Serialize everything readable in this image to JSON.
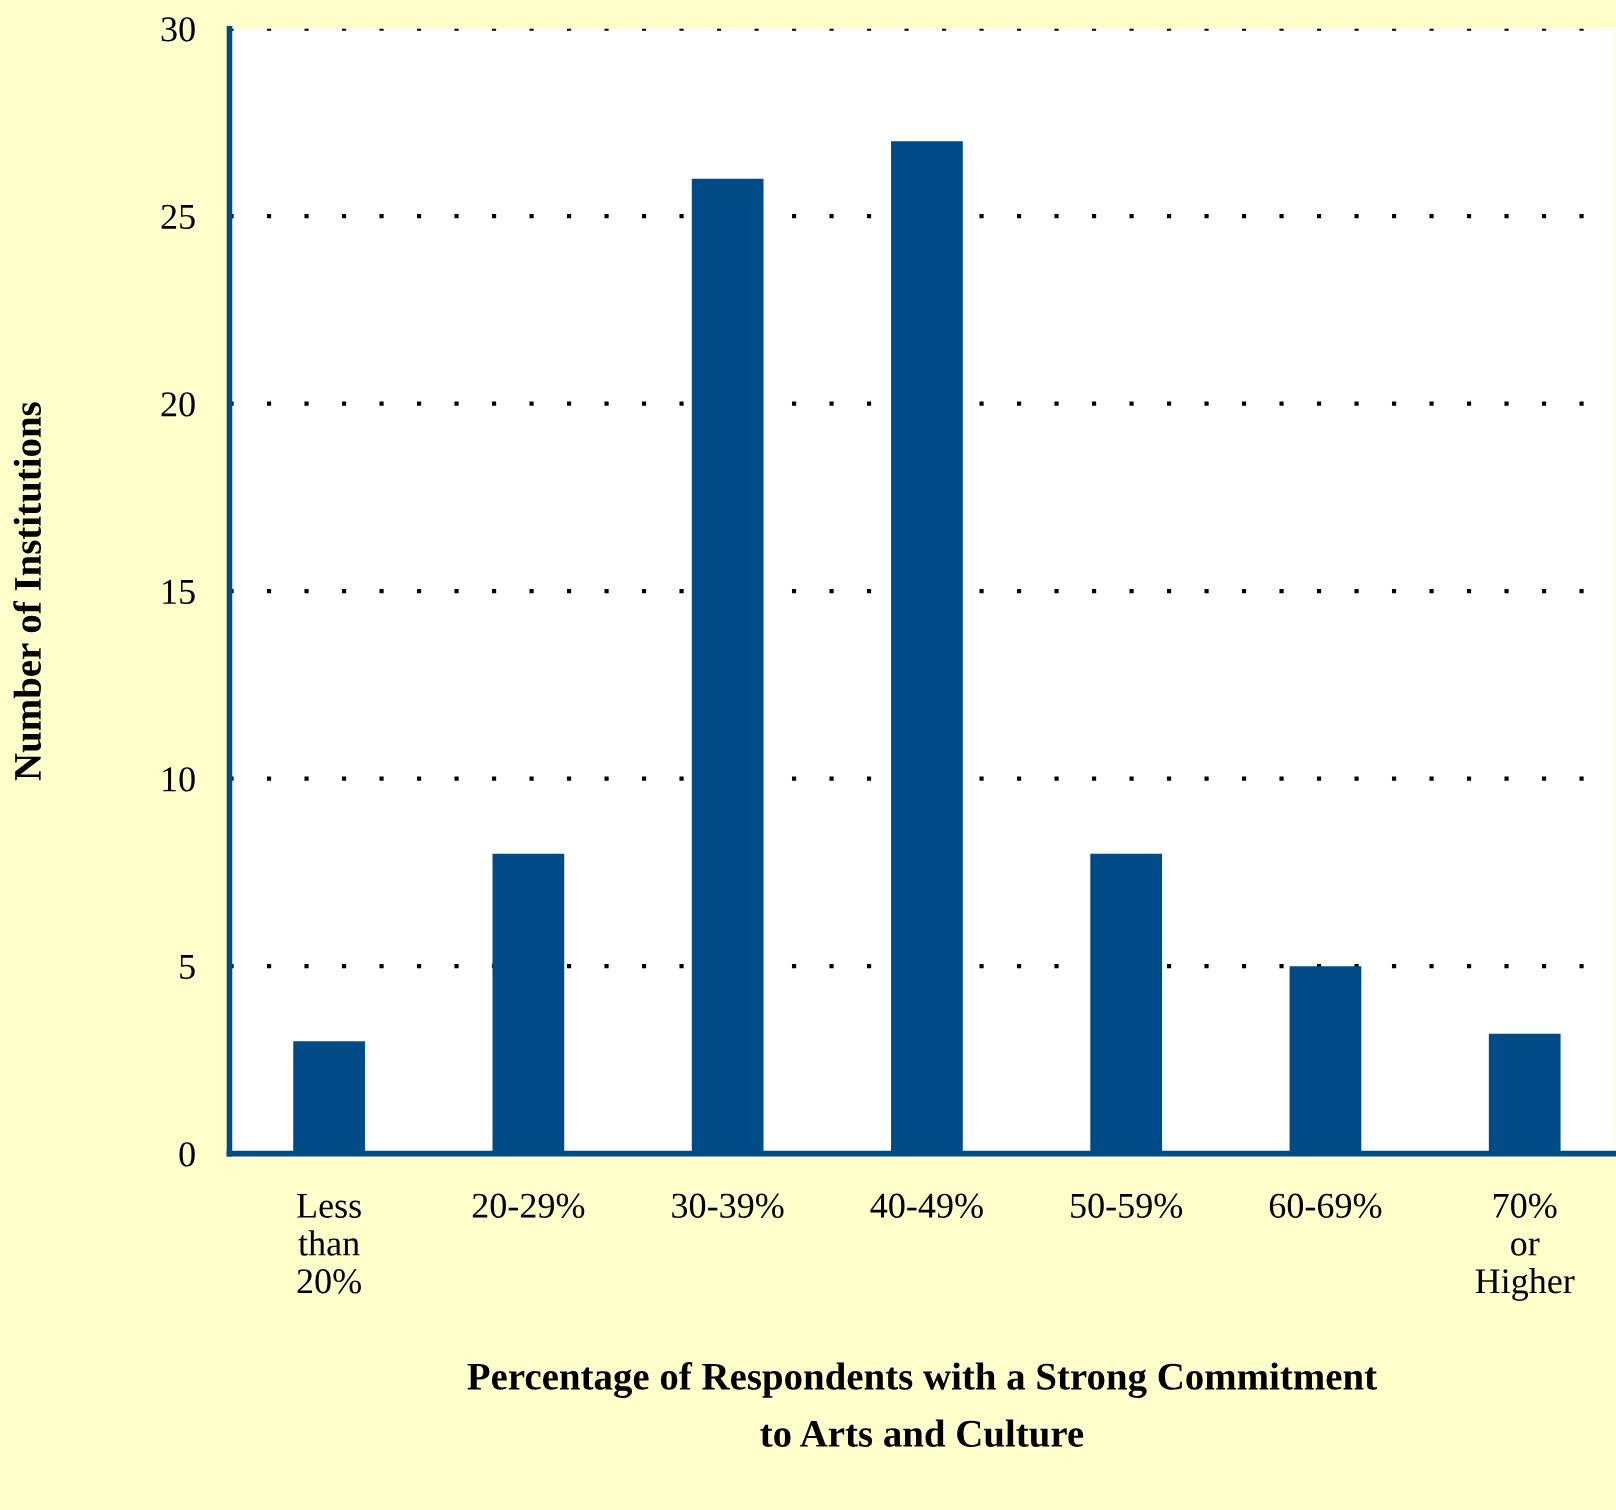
{
  "chart_data": {
    "type": "bar",
    "categories": [
      "Less\nthan\n20%",
      "20-29%",
      "30-39%",
      "40-49%",
      "50-59%",
      "60-69%",
      "70%\nor\nHigher"
    ],
    "values": [
      3,
      8,
      26,
      27,
      8,
      5,
      3.2
    ],
    "color": "#004a87",
    "xlabel": "Percentage of Respondents with a Strong Commitment\nto Arts and Culture",
    "ylabel": "Number of Institutions",
    "ylim": [
      0,
      30
    ],
    "yticks": [
      0,
      5,
      10,
      15,
      20,
      25,
      30
    ],
    "grid": "y"
  }
}
